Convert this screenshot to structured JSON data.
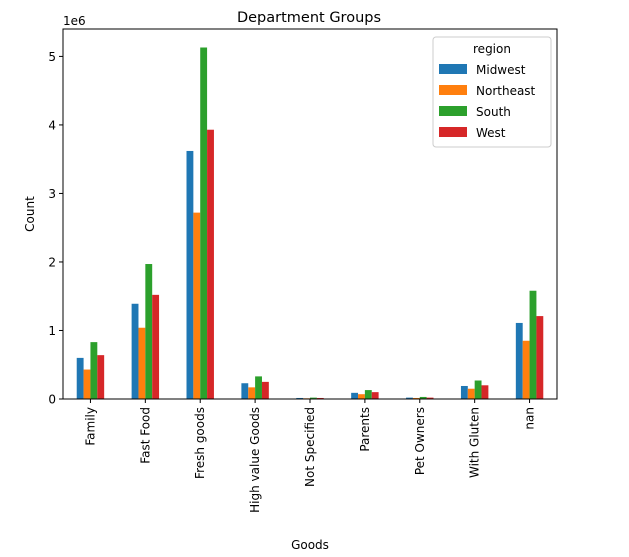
{
  "chart_data": {
    "type": "bar",
    "title": "Department Groups",
    "xlabel": "Goods",
    "ylabel": "Count",
    "y_scale_label": "1e6",
    "ylim": [
      0,
      5400000
    ],
    "yticks": [
      0,
      1000000,
      2000000,
      3000000,
      4000000,
      5000000
    ],
    "ytick_labels": [
      "0",
      "1",
      "2",
      "3",
      "4",
      "5"
    ],
    "categories": [
      "Family",
      "Fast Food",
      "Fresh goods",
      "High value Goods",
      "Not Specified",
      "Parents",
      "Pet Owners",
      "With Gluten",
      "nan"
    ],
    "legend": {
      "title": "region",
      "placement": "top-right"
    },
    "grid": false,
    "series": [
      {
        "name": "Midwest",
        "color": "#1f77b4",
        "values": [
          600000,
          1390000,
          3620000,
          230000,
          15000,
          90000,
          20000,
          190000,
          1110000
        ]
      },
      {
        "name": "Northeast",
        "color": "#ff7f0e",
        "values": [
          430000,
          1040000,
          2720000,
          170000,
          10000,
          70000,
          15000,
          150000,
          850000
        ]
      },
      {
        "name": "South",
        "color": "#2ca02c",
        "values": [
          830000,
          1970000,
          5130000,
          330000,
          20000,
          130000,
          30000,
          270000,
          1580000
        ]
      },
      {
        "name": "West",
        "color": "#d62728",
        "values": [
          640000,
          1520000,
          3930000,
          250000,
          15000,
          100000,
          20000,
          200000,
          1210000
        ]
      }
    ]
  }
}
